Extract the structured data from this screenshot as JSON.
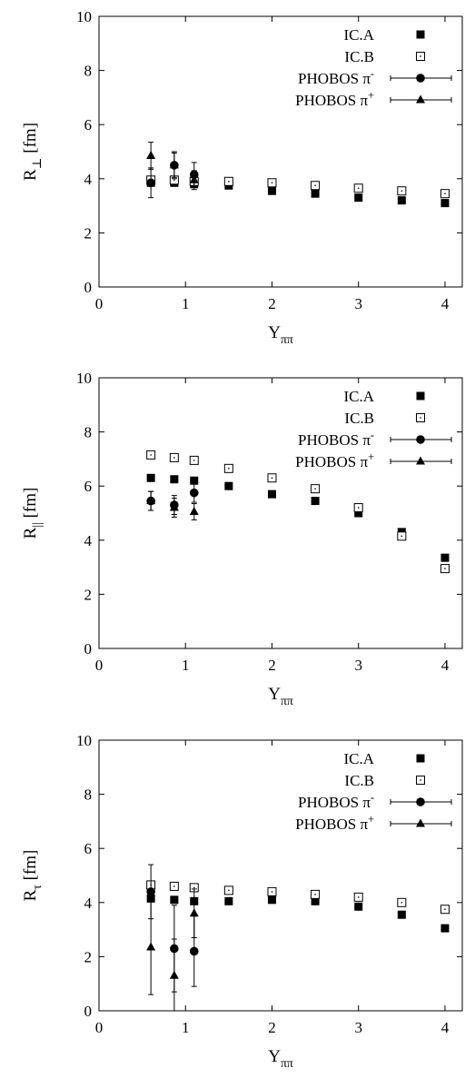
{
  "chart_data": [
    {
      "type": "scatter",
      "ylabel": "R_⊥ [fm]",
      "ylabel_base": "R",
      "ylabel_sub": "⊥",
      "ylabel_unit": " [fm]",
      "xlabel_base": "Y",
      "xlabel_sub": "ππ",
      "xlim": [
        0,
        4.2
      ],
      "ylim": [
        0,
        10
      ],
      "xticks": [
        "0",
        "1",
        "2",
        "3",
        "4"
      ],
      "yticks": [
        "0",
        "2",
        "4",
        "6",
        "8",
        "10"
      ],
      "grid": false,
      "legend_position": "top-right",
      "series": [
        {
          "name": "IC.A",
          "marker": "filled-square",
          "x": [
            0.6,
            0.87,
            1.1,
            1.5,
            2.0,
            2.5,
            3.0,
            3.5,
            4.0
          ],
          "y": [
            3.85,
            3.85,
            3.8,
            3.75,
            3.55,
            3.45,
            3.3,
            3.2,
            3.1
          ]
        },
        {
          "name": "IC.B",
          "marker": "open-square",
          "x": [
            0.6,
            0.87,
            1.1,
            1.5,
            2.0,
            2.5,
            3.0,
            3.5,
            4.0
          ],
          "y": [
            3.95,
            3.95,
            3.9,
            3.9,
            3.85,
            3.75,
            3.65,
            3.55,
            3.45
          ]
        },
        {
          "name": "PHOBOS π",
          "name_sup": "-",
          "marker": "circle",
          "x": [
            0.6,
            0.87,
            1.1
          ],
          "y": [
            3.85,
            4.5,
            4.15
          ],
          "err": [
            0.55,
            0.5,
            0.45
          ]
        },
        {
          "name": "PHOBOS π",
          "name_sup": "+",
          "marker": "triangle",
          "x": [
            0.6,
            0.87,
            1.1
          ],
          "y": [
            4.85,
            4.5,
            3.95
          ],
          "err": [
            0.5,
            0.45,
            0.35
          ]
        }
      ]
    },
    {
      "type": "scatter",
      "ylabel": "R_|| [fm]",
      "ylabel_base": "R",
      "ylabel_sub": "||",
      "ylabel_unit": " [fm]",
      "xlabel_base": "Y",
      "xlabel_sub": "ππ",
      "xlim": [
        0,
        4.2
      ],
      "ylim": [
        0,
        10
      ],
      "xticks": [
        "0",
        "1",
        "2",
        "3",
        "4"
      ],
      "yticks": [
        "0",
        "2",
        "4",
        "6",
        "8",
        "10"
      ],
      "grid": false,
      "legend_position": "top-right",
      "series": [
        {
          "name": "IC.A",
          "marker": "filled-square",
          "x": [
            0.6,
            0.87,
            1.1,
            1.5,
            2.0,
            2.5,
            3.0,
            3.5,
            4.0
          ],
          "y": [
            6.3,
            6.25,
            6.2,
            6.0,
            5.7,
            5.45,
            5.0,
            4.3,
            3.35
          ]
        },
        {
          "name": "IC.B",
          "marker": "open-square",
          "x": [
            0.6,
            0.87,
            1.1,
            1.5,
            2.0,
            2.5,
            3.0,
            3.5,
            4.0
          ],
          "y": [
            7.15,
            7.05,
            6.95,
            6.65,
            6.3,
            5.9,
            5.2,
            4.15,
            2.95
          ]
        },
        {
          "name": "PHOBOS π",
          "name_sup": "-",
          "marker": "circle",
          "x": [
            0.6,
            0.87,
            1.1
          ],
          "y": [
            5.45,
            5.3,
            5.75
          ],
          "err": [
            0.35,
            0.35,
            0.35
          ]
        },
        {
          "name": "PHOBOS π",
          "name_sup": "+",
          "marker": "triangle",
          "x": [
            0.6,
            0.87,
            1.1
          ],
          "y": [
            5.45,
            5.2,
            5.05
          ],
          "err": [
            0.35,
            0.35,
            0.3
          ]
        }
      ]
    },
    {
      "type": "scatter",
      "ylabel": "R_τ [fm]",
      "ylabel_base": "R",
      "ylabel_sub": "τ",
      "ylabel_unit": " [fm]",
      "xlabel_base": "Y",
      "xlabel_sub": "ππ",
      "xlim": [
        0,
        4.2
      ],
      "ylim": [
        0,
        10
      ],
      "xticks": [
        "0",
        "1",
        "2",
        "3",
        "4"
      ],
      "yticks": [
        "0",
        "2",
        "4",
        "6",
        "8",
        "10"
      ],
      "grid": false,
      "legend_position": "top-right",
      "series": [
        {
          "name": "IC.A",
          "marker": "filled-square",
          "x": [
            0.6,
            0.87,
            1.1,
            1.5,
            2.0,
            2.5,
            3.0,
            3.5,
            4.0
          ],
          "y": [
            4.15,
            4.1,
            4.05,
            4.05,
            4.1,
            4.05,
            3.85,
            3.55,
            3.05
          ]
        },
        {
          "name": "IC.B",
          "marker": "open-square",
          "x": [
            0.6,
            0.87,
            1.1,
            1.5,
            2.0,
            2.5,
            3.0,
            3.5,
            4.0
          ],
          "y": [
            4.65,
            4.6,
            4.55,
            4.45,
            4.4,
            4.3,
            4.2,
            4.0,
            3.75
          ]
        },
        {
          "name": "PHOBOS π",
          "name_sup": "-",
          "marker": "circle",
          "x": [
            0.6,
            0.87,
            1.1
          ],
          "y": [
            4.4,
            2.3,
            2.2
          ],
          "err": [
            1.0,
            1.6,
            1.3
          ]
        },
        {
          "name": "PHOBOS π",
          "name_sup": "+",
          "marker": "triangle",
          "x": [
            0.6,
            0.87,
            1.1
          ],
          "y": [
            2.35,
            1.3,
            3.6
          ],
          "err": [
            1.75,
            1.35,
            0.9
          ]
        }
      ]
    }
  ]
}
